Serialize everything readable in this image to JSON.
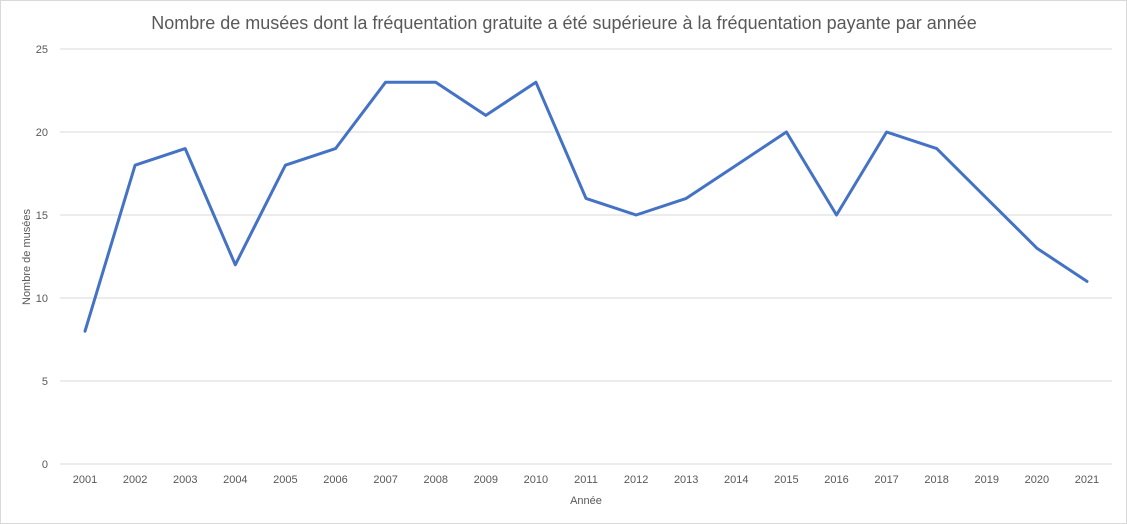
{
  "chart_data": {
    "type": "line",
    "title": "Nombre de musées dont la fréquentation gratuite a été supérieure à la fréquentation payante par année",
    "xlabel": "Année",
    "ylabel": "Nombre de musées",
    "ylim": [
      0,
      25
    ],
    "yticks": [
      0,
      5,
      10,
      15,
      20,
      25
    ],
    "grid": true,
    "categories": [
      "2001",
      "2002",
      "2003",
      "2004",
      "2005",
      "2006",
      "2007",
      "2008",
      "2009",
      "2010",
      "2011",
      "2012",
      "2013",
      "2014",
      "2015",
      "2016",
      "2017",
      "2018",
      "2019",
      "2020",
      "2021"
    ],
    "series": [
      {
        "name": "Nombre de musées",
        "color": "#4472c4",
        "values": [
          8,
          18,
          19,
          12,
          18,
          19,
          23,
          23,
          21,
          23,
          16,
          15,
          16,
          18,
          20,
          15,
          20,
          19,
          16,
          13,
          11
        ]
      }
    ]
  }
}
